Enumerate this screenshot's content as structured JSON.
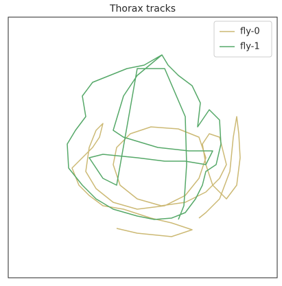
{
  "chart_data": {
    "type": "line",
    "title": "Thorax tracks",
    "legend": "upper right",
    "xlim": [
      12,
      404
    ],
    "ylim": [
      405,
      25
    ],
    "series": [
      {
        "name": "fly-0",
        "color": "#ccb974",
        "x": [
          290,
          300,
          320,
          335,
          340,
          345,
          348,
          350,
          345,
          330,
          310,
          300,
          295,
          305,
          320,
          330,
          320,
          300,
          270,
          235,
          200,
          175,
          165,
          170,
          190,
          220,
          260,
          290,
          300,
          290,
          270,
          240,
          200,
          165,
          140,
          125,
          130,
          140,
          150,
          145,
          135,
          120,
          105,
          115,
          130,
          150,
          180,
          220,
          250,
          280,
          250,
          200,
          170
        ],
        "y": [
          318,
          310,
          290,
          250,
          200,
          170,
          195,
          230,
          270,
          290,
          270,
          240,
          210,
          195,
          200,
          240,
          260,
          280,
          295,
          300,
          290,
          270,
          240,
          215,
          195,
          185,
          188,
          200,
          230,
          260,
          285,
          300,
          305,
          295,
          275,
          250,
          215,
          190,
          180,
          200,
          215,
          230,
          245,
          270,
          285,
          300,
          305,
          318,
          325,
          335,
          345,
          340,
          333
        ]
      },
      {
        "name": "fly-1",
        "color": "#55a868",
        "x": [
          236,
          245,
          260,
          280,
          292,
          288,
          305,
          320,
          322,
          315,
          300,
          295,
          285,
          270,
          250,
          225,
          200,
          165,
          140,
          120,
          100,
          98,
          110,
          125,
          120,
          135,
          160,
          185,
          210,
          236,
          200,
          180,
          165,
          180,
          230,
          275,
          310,
          300,
          270,
          240,
          200,
          150,
          130,
          150,
          170,
          200,
          240,
          270,
          272,
          268,
          260
        ],
        "y": [
          80,
          95,
          110,
          125,
          150,
          185,
          160,
          175,
          210,
          240,
          250,
          270,
          290,
          310,
          318,
          320,
          315,
          305,
          290,
          270,
          245,
          210,
          190,
          170,
          140,
          120,
          110,
          100,
          95,
          80,
          110,
          140,
          190,
          200,
          215,
          220,
          220,
          240,
          235,
          235,
          230,
          225,
          230,
          260,
          270,
          100,
          100,
          170,
          240,
          300,
          320
        ]
      }
    ]
  }
}
